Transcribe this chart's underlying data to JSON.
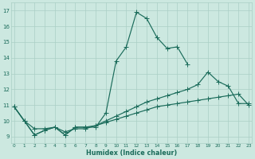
{
  "xlabel": "Humidex (Indice chaleur)",
  "x_ticks": [
    0,
    1,
    2,
    3,
    4,
    5,
    6,
    7,
    8,
    9,
    10,
    11,
    12,
    13,
    14,
    15,
    16,
    17,
    18,
    19,
    20,
    21,
    22,
    23
  ],
  "y_ticks": [
    9,
    10,
    11,
    12,
    13,
    14,
    15,
    16,
    17
  ],
  "xlim": [
    -0.3,
    23.3
  ],
  "ylim": [
    8.6,
    17.5
  ],
  "bg_color": "#cce8e0",
  "grid_color": "#aacfc5",
  "line_color": "#1a6b5a",
  "series1_x": [
    0,
    1,
    2,
    3,
    4,
    5,
    6,
    7,
    8,
    9,
    10,
    11,
    12,
    13,
    14,
    15,
    16,
    17
  ],
  "series1_y": [
    10.9,
    10.0,
    9.1,
    9.4,
    9.6,
    9.1,
    9.6,
    9.6,
    9.6,
    10.5,
    13.8,
    14.7,
    16.9,
    16.5,
    15.3,
    14.6,
    14.7,
    13.6
  ],
  "series2_x": [
    0,
    1,
    2,
    3,
    4,
    5,
    6,
    7,
    8,
    9,
    10,
    11,
    12,
    13,
    14,
    15,
    16,
    17,
    18,
    19,
    20,
    21,
    22,
    23
  ],
  "series2_y": [
    10.9,
    10.0,
    9.1,
    9.4,
    9.6,
    9.1,
    9.6,
    9.6,
    9.7,
    10.0,
    10.3,
    10.6,
    10.9,
    11.2,
    11.4,
    11.6,
    11.8,
    12.0,
    12.3,
    13.1,
    12.5,
    12.2,
    11.1,
    11.1
  ],
  "series3_x": [
    0,
    1,
    2,
    3,
    4,
    5,
    6,
    7,
    8,
    9,
    10,
    11,
    12,
    13,
    14,
    15,
    16,
    17,
    18,
    19,
    20,
    21,
    22,
    23
  ],
  "series3_y": [
    10.9,
    10.0,
    9.5,
    9.5,
    9.6,
    9.3,
    9.5,
    9.5,
    9.7,
    9.9,
    10.1,
    10.3,
    10.5,
    10.7,
    10.9,
    11.0,
    11.1,
    11.2,
    11.3,
    11.4,
    11.5,
    11.6,
    11.7,
    11.0
  ]
}
